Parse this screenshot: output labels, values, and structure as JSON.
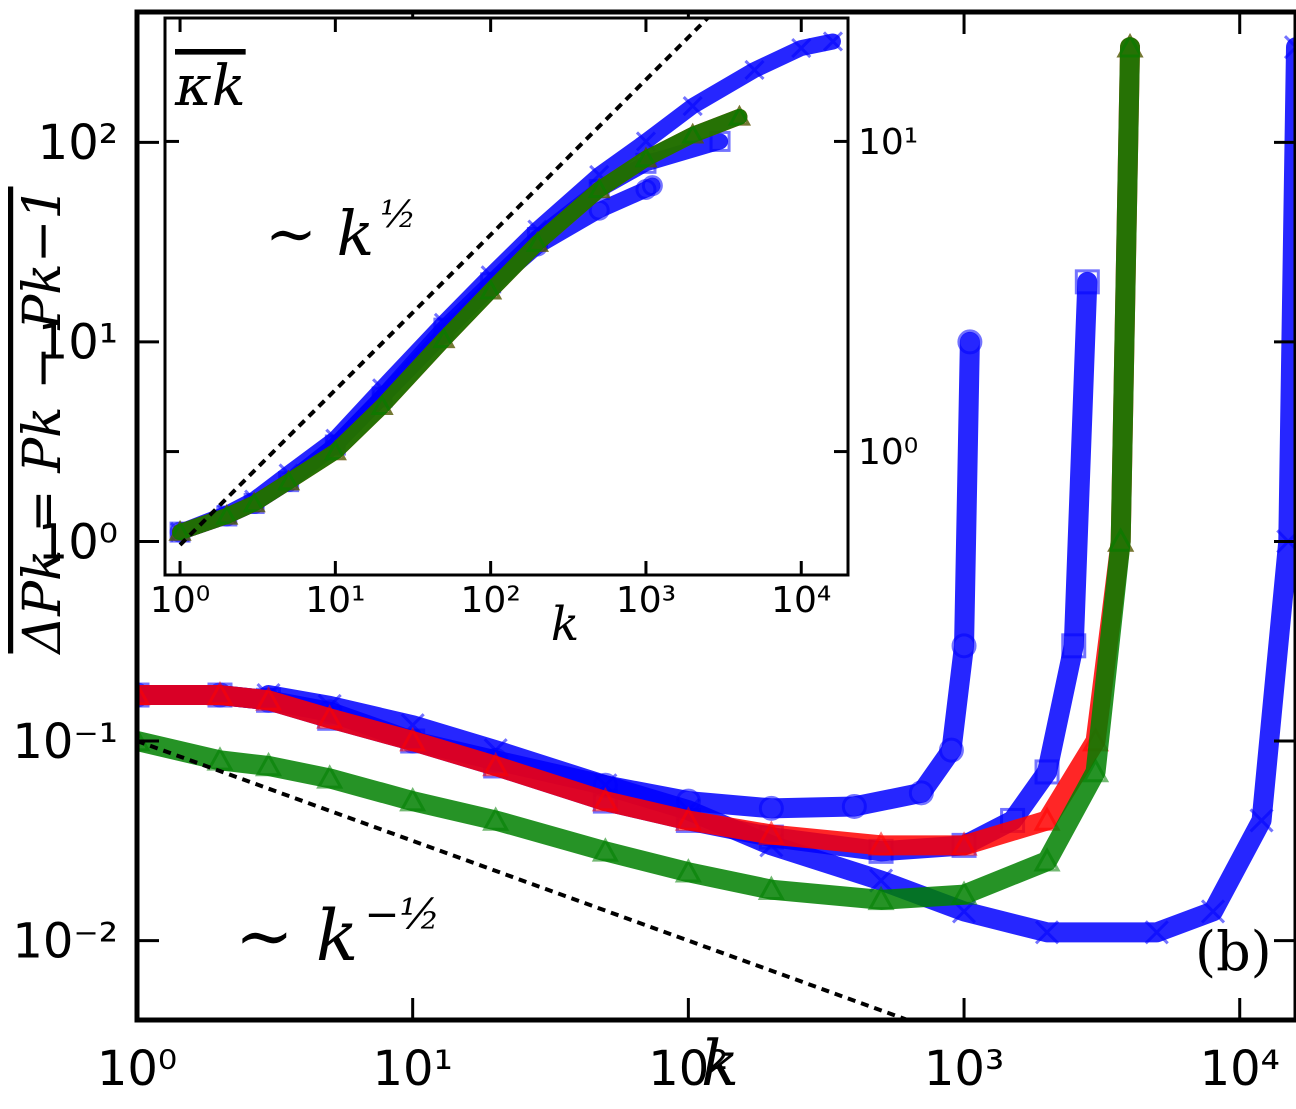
{
  "chart_data": [
    {
      "type": "scatter",
      "log_x": true,
      "log_y": true,
      "xlabel": "k",
      "ylabel": "ΔPk = Pk − Pk−1",
      "panel_label": "(b)",
      "xlim": [
        1,
        16000
      ],
      "ylim": [
        0.004,
        450
      ],
      "xticks": [
        {
          "value": 1,
          "label": "10⁰"
        },
        {
          "value": 10,
          "label": "10¹"
        },
        {
          "value": 100,
          "label": "10²"
        },
        {
          "value": 1000,
          "label": "10³"
        },
        {
          "value": 10000,
          "label": "10⁴"
        }
      ],
      "yticks": [
        {
          "value": 0.01,
          "label": "10⁻²"
        },
        {
          "value": 0.1,
          "label": "10⁻¹"
        },
        {
          "value": 1,
          "label": "10⁰"
        },
        {
          "value": 10,
          "label": "10¹"
        },
        {
          "value": 100,
          "label": "10²"
        }
      ],
      "series": [
        {
          "marker": "circle",
          "color": "#0000ff",
          "x": [
            1,
            2,
            3,
            5,
            10,
            20,
            50,
            100,
            200,
            400,
            700,
            900,
            1000,
            1050
          ],
          "values": [
            0.17,
            0.17,
            0.16,
            0.14,
            0.1,
            0.08,
            0.06,
            0.05,
            0.046,
            0.047,
            0.055,
            0.09,
            0.3,
            10
          ]
        },
        {
          "marker": "square",
          "color": "#0000ff",
          "x": [
            1,
            2,
            3,
            5,
            10,
            20,
            50,
            100,
            200,
            500,
            1000,
            1500,
            2000,
            2500,
            2800
          ],
          "values": [
            0.17,
            0.17,
            0.16,
            0.13,
            0.1,
            0.075,
            0.05,
            0.04,
            0.033,
            0.028,
            0.03,
            0.04,
            0.07,
            0.3,
            20
          ]
        },
        {
          "marker": "x",
          "color": "#0000ff",
          "x": [
            3,
            5,
            10,
            20,
            50,
            100,
            200,
            500,
            1000,
            2000,
            5000,
            8000,
            12000,
            15000,
            16000
          ],
          "values": [
            0.17,
            0.15,
            0.12,
            0.09,
            0.06,
            0.045,
            0.03,
            0.02,
            0.014,
            0.011,
            0.011,
            0.014,
            0.04,
            1,
            300
          ]
        },
        {
          "marker": "triangle",
          "color": "#ff0000",
          "x": [
            1,
            2,
            3,
            5,
            10,
            20,
            50,
            100,
            200,
            500,
            1000,
            2000,
            3000,
            3700,
            4000
          ],
          "values": [
            0.17,
            0.17,
            0.16,
            0.13,
            0.1,
            0.075,
            0.05,
            0.04,
            0.034,
            0.03,
            0.03,
            0.04,
            0.1,
            1,
            300
          ]
        },
        {
          "marker": "triangle",
          "color": "#008000",
          "x": [
            1,
            2,
            3,
            5,
            10,
            20,
            50,
            100,
            200,
            500,
            1000,
            2000,
            3000,
            3700,
            4000
          ],
          "values": [
            0.1,
            0.08,
            0.075,
            0.065,
            0.05,
            0.04,
            0.028,
            0.022,
            0.018,
            0.016,
            0.017,
            0.025,
            0.07,
            1,
            300
          ]
        }
      ],
      "guides": [
        {
          "x": [
            1,
            1000
          ],
          "values": [
            0.1,
            0.00316
          ]
        }
      ],
      "annotations": [
        {
          "text": "∼ k",
          "sup": "−½"
        }
      ]
    },
    {
      "type": "scatter",
      "log_x": true,
      "log_y": true,
      "xlabel": "k",
      "ylabel": "κk",
      "xlim": [
        0.8,
        20000
      ],
      "ylim": [
        0.4,
        25
      ],
      "xticks": [
        {
          "value": 1,
          "label": "10⁰"
        },
        {
          "value": 10,
          "label": "10¹"
        },
        {
          "value": 100,
          "label": "10²"
        },
        {
          "value": 1000,
          "label": "10³"
        },
        {
          "value": 10000,
          "label": "10⁴"
        }
      ],
      "yticks": [
        {
          "value": 1,
          "label": "10⁰"
        },
        {
          "value": 10,
          "label": "10¹"
        }
      ],
      "series": [
        {
          "marker": "x",
          "color": "#0000ff",
          "x": [
            1,
            2,
            3,
            5,
            10,
            20,
            50,
            100,
            200,
            500,
            1000,
            2000,
            5000,
            10000,
            16000
          ],
          "values": [
            0.55,
            0.63,
            0.7,
            0.85,
            1.1,
            1.6,
            2.6,
            3.7,
            5.2,
            7.8,
            10,
            13,
            17,
            20,
            21
          ]
        },
        {
          "marker": "circle",
          "color": "#0000ff",
          "x": [
            1,
            2,
            3,
            5,
            10,
            20,
            50,
            100,
            200,
            500,
            1000,
            1100
          ],
          "values": [
            0.55,
            0.62,
            0.68,
            0.8,
            1.05,
            1.5,
            2.4,
            3.4,
            4.6,
            6.0,
            7.0,
            7.2
          ]
        },
        {
          "marker": "square",
          "color": "#0000ff",
          "x": [
            1,
            2,
            3,
            5,
            10,
            20,
            50,
            100,
            200,
            500,
            1000,
            3000
          ],
          "values": [
            0.55,
            0.62,
            0.68,
            0.8,
            1.05,
            1.5,
            2.5,
            3.5,
            4.9,
            7.0,
            8.5,
            10
          ]
        },
        {
          "marker": "triangle",
          "color": "#ff0000",
          "x": [
            1,
            2,
            3,
            5,
            10,
            20,
            50,
            100,
            200,
            500,
            1000,
            2000,
            4000
          ],
          "values": [
            0.55,
            0.62,
            0.68,
            0.8,
            1.0,
            1.4,
            2.3,
            3.3,
            4.7,
            7.0,
            8.8,
            10.5,
            12
          ]
        },
        {
          "marker": "triangle",
          "color": "#008000",
          "x": [
            1,
            2,
            3,
            5,
            10,
            20,
            50,
            100,
            200,
            500,
            1000,
            2000,
            4000
          ],
          "values": [
            0.55,
            0.62,
            0.68,
            0.8,
            1.0,
            1.4,
            2.3,
            3.3,
            4.7,
            7.0,
            8.8,
            10.5,
            12
          ]
        }
      ],
      "guides": [
        {
          "x": [
            1,
            3000
          ],
          "values": [
            0.5,
            27.4
          ]
        }
      ],
      "annotations": [
        {
          "text": "∼ k",
          "sup": "½"
        }
      ]
    }
  ]
}
